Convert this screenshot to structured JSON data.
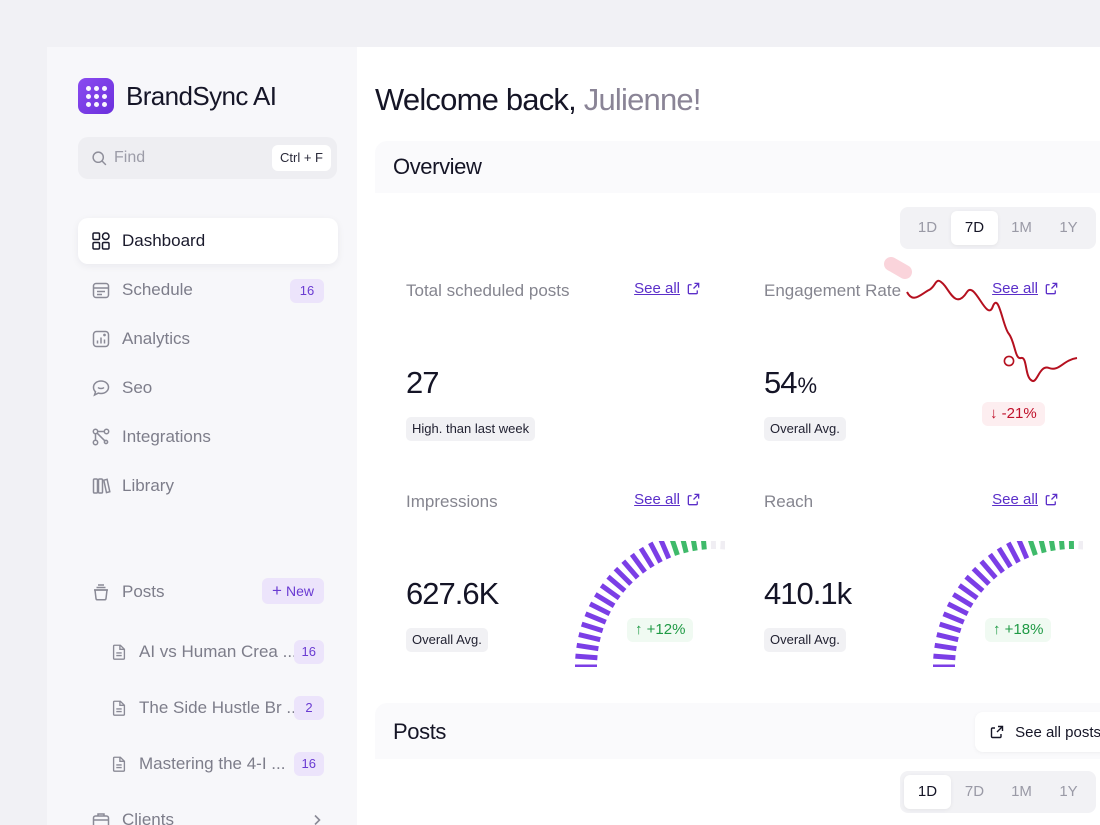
{
  "brand": {
    "name": "BrandSync AI"
  },
  "search": {
    "placeholder": "Find",
    "shortcut": "Ctrl + F"
  },
  "sidebar": {
    "items": [
      {
        "label": "Dashboard",
        "icon": "dashboard-icon",
        "active": true
      },
      {
        "label": "Schedule",
        "icon": "calendar-icon",
        "badge": "16"
      },
      {
        "label": "Analytics",
        "icon": "analytics-icon"
      },
      {
        "label": "Seo",
        "icon": "chat-bubble-icon"
      },
      {
        "label": "Integrations",
        "icon": "integrations-icon"
      },
      {
        "label": "Library",
        "icon": "library-icon"
      }
    ],
    "posts": {
      "label": "Posts",
      "new_label": "New",
      "items": [
        {
          "label": "AI vs Human Crea ...",
          "badge": "16"
        },
        {
          "label": "The Side Hustle Br ...",
          "badge": "2"
        },
        {
          "label": "Mastering the 4-I ...",
          "badge": "16"
        }
      ]
    },
    "clients": {
      "label": "Clients"
    }
  },
  "header": {
    "greeting": "Welcome back,",
    "user_name": "Julienne!"
  },
  "overview": {
    "title": "Overview",
    "periods": [
      "1D",
      "7D",
      "1M",
      "1Y"
    ],
    "active_period": "7D",
    "cards": {
      "scheduled": {
        "title": "Total scheduled posts",
        "link": "See all",
        "value": "27",
        "note": "High. than last week"
      },
      "engagement": {
        "title": "Engagement Rate",
        "link": "See all",
        "value": "54",
        "unit": "%",
        "note": "Overall Avg.",
        "delta": "↓ -21%"
      },
      "impressions": {
        "title": "Impressions",
        "link": "See all",
        "value": "627.6K",
        "note": "Overall Avg.",
        "delta": "↑ +12%",
        "gauge_level": 0.78
      },
      "reach": {
        "title": "Reach",
        "link": "See all",
        "value": "410.1k",
        "note": "Overall Avg.",
        "delta": "↑ +18%",
        "gauge_level": 0.82
      }
    }
  },
  "posts_panel": {
    "title": "Posts",
    "see_all": "See all posts",
    "periods": [
      "1D",
      "7D",
      "1M",
      "1Y"
    ],
    "active_period": "1D"
  },
  "colors": {
    "accent": "#6a3bd2",
    "gauge_purple": "#7b3ee6",
    "gauge_green": "#3fba6a",
    "trend_red": "#b5101f"
  }
}
